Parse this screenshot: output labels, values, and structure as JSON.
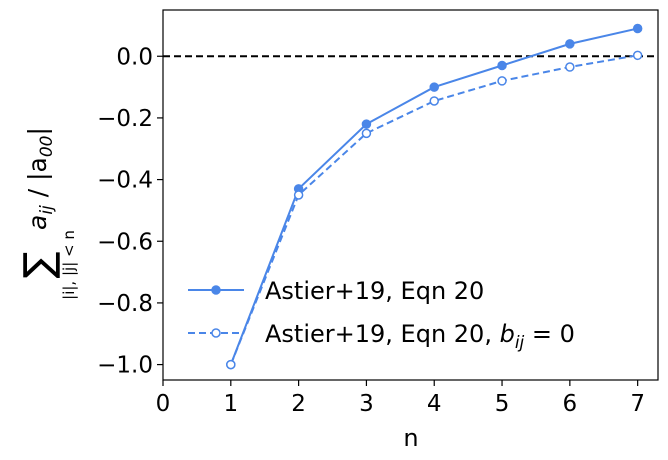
{
  "chart_data": {
    "type": "line",
    "xlabel": "n",
    "ylabel": {
      "prefix": "∑",
      "subscript": "|i|, |j| < n",
      "text": "a",
      "text_sub": "ij",
      "divider": " / |a",
      "divider_sub": "00",
      "suffix": "|"
    },
    "xlim": [
      0,
      7.3
    ],
    "ylim": [
      -1.05,
      0.15
    ],
    "xticks": [
      0,
      1,
      2,
      3,
      4,
      5,
      6,
      7
    ],
    "xtick_labels": [
      "0",
      "1",
      "2",
      "3",
      "4",
      "5",
      "6",
      "7"
    ],
    "yticks": [
      0.0,
      -0.2,
      -0.4,
      -0.6,
      -0.8,
      -1.0
    ],
    "ytick_labels": [
      "0.0",
      "−0.2",
      "−0.4",
      "−0.6",
      "−0.8",
      "−1.0"
    ],
    "reference_line": {
      "y": 0,
      "style": "dashed",
      "color": "#000000"
    },
    "grid": false,
    "legend_position": "lower-right",
    "series": [
      {
        "name": "Astier+19, Eqn 20",
        "x": [
          1,
          2,
          3,
          4,
          5,
          6,
          7
        ],
        "y": [
          -1.0,
          -0.43,
          -0.22,
          -0.1,
          -0.03,
          0.04,
          0.09
        ],
        "color": "#4a86e8",
        "line_style": "solid",
        "marker": "filled-circle"
      },
      {
        "name": "Astier+19, Eqn 20, ",
        "name_math": "b",
        "name_math_sub": "ij",
        "name_math_rest": " = 0",
        "x": [
          1,
          2,
          3,
          4,
          5,
          6,
          7
        ],
        "y": [
          -1.0,
          -0.45,
          -0.25,
          -0.145,
          -0.08,
          -0.035,
          0.003
        ],
        "color": "#4a86e8",
        "line_style": "dashed",
        "marker": "open-circle"
      }
    ]
  }
}
